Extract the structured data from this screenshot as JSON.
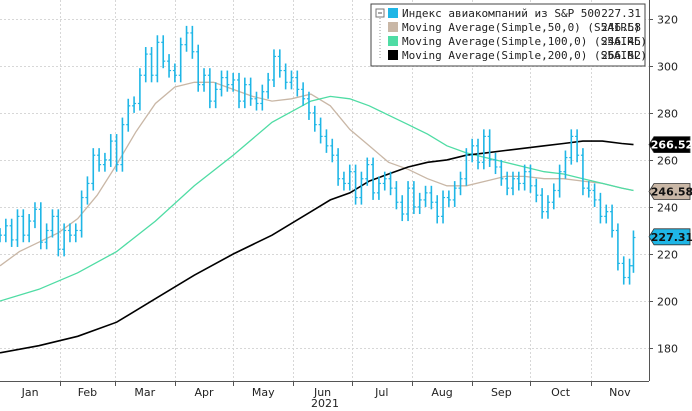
{
  "chart_data": {
    "type": "line",
    "x_group_label": "2021",
    "months": [
      "Jan",
      "Feb",
      "Mar",
      "Apr",
      "May",
      "Jun",
      "Jul",
      "Aug",
      "Sep",
      "Oct",
      "Nov"
    ],
    "y_ticks": [
      180,
      200,
      220,
      240,
      260,
      280,
      300,
      320
    ],
    "ylim": [
      166,
      328
    ],
    "grid": true,
    "legend_position": "top-right",
    "series": [
      {
        "name": "Индекс авиакомпаний из S&P 500",
        "value_label": "227.31",
        "color": "#1fb6e6",
        "style": "ohlc",
        "points": [
          [
            0,
            228
          ],
          [
            3,
            232
          ],
          [
            6,
            226
          ],
          [
            9,
            236
          ],
          [
            12,
            228
          ],
          [
            15,
            234
          ],
          [
            18,
            239
          ],
          [
            21,
            225
          ],
          [
            24,
            230
          ],
          [
            27,
            236
          ],
          [
            30,
            222
          ],
          [
            33,
            230
          ],
          [
            36,
            228
          ],
          [
            39,
            230
          ],
          [
            42,
            244
          ],
          [
            45,
            250
          ],
          [
            48,
            262
          ],
          [
            51,
            258
          ],
          [
            54,
            260
          ],
          [
            57,
            268
          ],
          [
            60,
            258
          ],
          [
            63,
            275
          ],
          [
            66,
            283
          ],
          [
            69,
            284
          ],
          [
            72,
            296
          ],
          [
            75,
            305
          ],
          [
            78,
            296
          ],
          [
            81,
            310
          ],
          [
            84,
            302
          ],
          [
            87,
            298
          ],
          [
            90,
            296
          ],
          [
            93,
            309
          ],
          [
            96,
            314
          ],
          [
            99,
            306
          ],
          [
            102,
            292
          ],
          [
            105,
            296
          ],
          [
            108,
            285
          ],
          [
            111,
            290
          ],
          [
            114,
            295
          ],
          [
            117,
            292
          ],
          [
            120,
            294
          ],
          [
            123,
            285
          ],
          [
            126,
            292
          ],
          [
            129,
            286
          ],
          [
            132,
            284
          ],
          [
            135,
            289
          ],
          [
            138,
            294
          ],
          [
            141,
            304
          ],
          [
            144,
            298
          ],
          [
            147,
            293
          ],
          [
            150,
            295
          ],
          [
            153,
            290
          ],
          [
            156,
            286
          ],
          [
            159,
            280
          ],
          [
            162,
            275
          ],
          [
            165,
            270
          ],
          [
            168,
            266
          ],
          [
            171,
            262
          ],
          [
            174,
            252
          ],
          [
            177,
            250
          ],
          [
            180,
            255
          ],
          [
            183,
            244
          ],
          [
            186,
            252
          ],
          [
            189,
            258
          ],
          [
            192,
            246
          ],
          [
            195,
            250
          ],
          [
            198,
            252
          ],
          [
            201,
            248
          ],
          [
            204,
            242
          ],
          [
            207,
            237
          ],
          [
            210,
            248
          ],
          [
            213,
            240
          ],
          [
            216,
            243
          ],
          [
            219,
            246
          ],
          [
            222,
            242
          ],
          [
            225,
            236
          ],
          [
            228,
            244
          ],
          [
            231,
            243
          ],
          [
            234,
            248
          ],
          [
            237,
            252
          ],
          [
            240,
            262
          ],
          [
            243,
            266
          ],
          [
            246,
            259
          ],
          [
            249,
            270
          ],
          [
            252,
            260
          ],
          [
            255,
            257
          ],
          [
            258,
            252
          ],
          [
            261,
            248
          ],
          [
            264,
            252
          ],
          [
            267,
            250
          ],
          [
            270,
            255
          ],
          [
            273,
            249
          ],
          [
            276,
            245
          ],
          [
            279,
            238
          ],
          [
            282,
            242
          ],
          [
            285,
            247
          ],
          [
            288,
            255
          ],
          [
            291,
            261
          ],
          [
            294,
            270
          ],
          [
            297,
            262
          ],
          [
            300,
            248
          ],
          [
            303,
            247
          ],
          [
            306,
            243
          ],
          [
            309,
            236
          ],
          [
            312,
            238
          ],
          [
            315,
            230
          ],
          [
            318,
            216
          ],
          [
            321,
            210
          ],
          [
            324,
            215
          ],
          [
            326,
            227
          ]
        ]
      },
      {
        "name": "Moving Average(Simple,50,0) (S5AIRL)",
        "value_label": "246.58",
        "color": "#c9b7a6",
        "style": "line",
        "points": [
          [
            0,
            215
          ],
          [
            10,
            221
          ],
          [
            20,
            225
          ],
          [
            30,
            229
          ],
          [
            40,
            235
          ],
          [
            50,
            245
          ],
          [
            60,
            258
          ],
          [
            70,
            272
          ],
          [
            80,
            284
          ],
          [
            90,
            291
          ],
          [
            100,
            293
          ],
          [
            110,
            293
          ],
          [
            120,
            290
          ],
          [
            130,
            287
          ],
          [
            140,
            285
          ],
          [
            150,
            286
          ],
          [
            160,
            288
          ],
          [
            170,
            283
          ],
          [
            180,
            273
          ],
          [
            190,
            266
          ],
          [
            200,
            259
          ],
          [
            210,
            256
          ],
          [
            220,
            252
          ],
          [
            230,
            249
          ],
          [
            240,
            249
          ],
          [
            250,
            251
          ],
          [
            260,
            253
          ],
          [
            270,
            253
          ],
          [
            280,
            252
          ],
          [
            290,
            252
          ],
          [
            300,
            251
          ],
          [
            310,
            250
          ],
          [
            320,
            248
          ],
          [
            326,
            247
          ]
        ]
      },
      {
        "name": "Moving Average(Simple,100,0) (S5AIRL)",
        "value_label": "246.45",
        "color": "#4fdca4",
        "style": "line",
        "points": [
          [
            0,
            200
          ],
          [
            20,
            205
          ],
          [
            40,
            212
          ],
          [
            60,
            221
          ],
          [
            80,
            234
          ],
          [
            100,
            249
          ],
          [
            120,
            262
          ],
          [
            140,
            276
          ],
          [
            160,
            285
          ],
          [
            170,
            287
          ],
          [
            180,
            286
          ],
          [
            190,
            283
          ],
          [
            200,
            279
          ],
          [
            210,
            275
          ],
          [
            220,
            271
          ],
          [
            230,
            266
          ],
          [
            240,
            263
          ],
          [
            250,
            261
          ],
          [
            260,
            259
          ],
          [
            270,
            257
          ],
          [
            280,
            255
          ],
          [
            290,
            254
          ],
          [
            300,
            252
          ],
          [
            310,
            250
          ],
          [
            320,
            248
          ],
          [
            326,
            247
          ]
        ]
      },
      {
        "name": "Moving Average(Simple,200,0) (S5AIRL)",
        "value_label": "266.52",
        "color": "#000000",
        "style": "line",
        "points": [
          [
            0,
            178
          ],
          [
            20,
            181
          ],
          [
            40,
            185
          ],
          [
            60,
            191
          ],
          [
            80,
            201
          ],
          [
            100,
            211
          ],
          [
            120,
            220
          ],
          [
            140,
            228
          ],
          [
            160,
            238
          ],
          [
            170,
            243
          ],
          [
            180,
            246
          ],
          [
            190,
            251
          ],
          [
            200,
            254
          ],
          [
            210,
            257
          ],
          [
            220,
            259
          ],
          [
            230,
            260
          ],
          [
            240,
            262
          ],
          [
            250,
            263
          ],
          [
            260,
            264
          ],
          [
            270,
            265
          ],
          [
            280,
            266
          ],
          [
            290,
            267
          ],
          [
            300,
            268
          ],
          [
            310,
            268
          ],
          [
            320,
            267
          ],
          [
            326,
            266.5
          ]
        ]
      }
    ]
  }
}
